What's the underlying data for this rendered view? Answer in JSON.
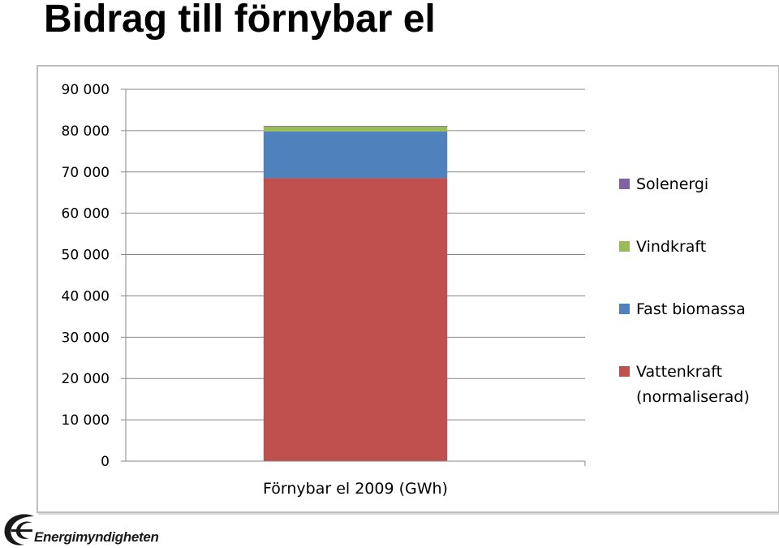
{
  "slide": {
    "title": "Bidrag till förnybar el"
  },
  "logo": {
    "name": "Energimyndigheten"
  },
  "chart_data": {
    "type": "bar",
    "stacked": true,
    "categories": [
      "Förnybar el 2009 (GWh)"
    ],
    "series": [
      {
        "name": "Vattenkraft (normaliserad)",
        "values": [
          68500
        ],
        "color": "#c0504d"
      },
      {
        "name": "Fast biomassa",
        "values": [
          11300
        ],
        "color": "#4f81bd"
      },
      {
        "name": "Vindkraft",
        "values": [
          1300
        ],
        "color": "#9bbb59"
      },
      {
        "name": "Solenergi",
        "values": [
          40
        ],
        "color": "#8064a2"
      }
    ],
    "legend_order": [
      "Solenergi",
      "Vindkraft",
      "Fast biomassa",
      "Vattenkraft (normaliserad)"
    ],
    "legend_lines": {
      "Solenergi": [
        "Solenergi"
      ],
      "Vindkraft": [
        "Vindkraft"
      ],
      "Fast biomassa": [
        "Fast biomassa"
      ],
      "Vattenkraft (normaliserad)": [
        "Vattenkraft",
        "(normaliserad)"
      ]
    },
    "yticks": [
      0,
      10000,
      20000,
      30000,
      40000,
      50000,
      60000,
      70000,
      80000,
      90000
    ],
    "ytick_labels": [
      "0",
      "10 000",
      "20 000",
      "30 000",
      "40 000",
      "50 000",
      "60 000",
      "70 000",
      "80 000",
      "90 000"
    ],
    "ylim": [
      0,
      90000
    ],
    "grid": true,
    "legend_position": "right"
  }
}
